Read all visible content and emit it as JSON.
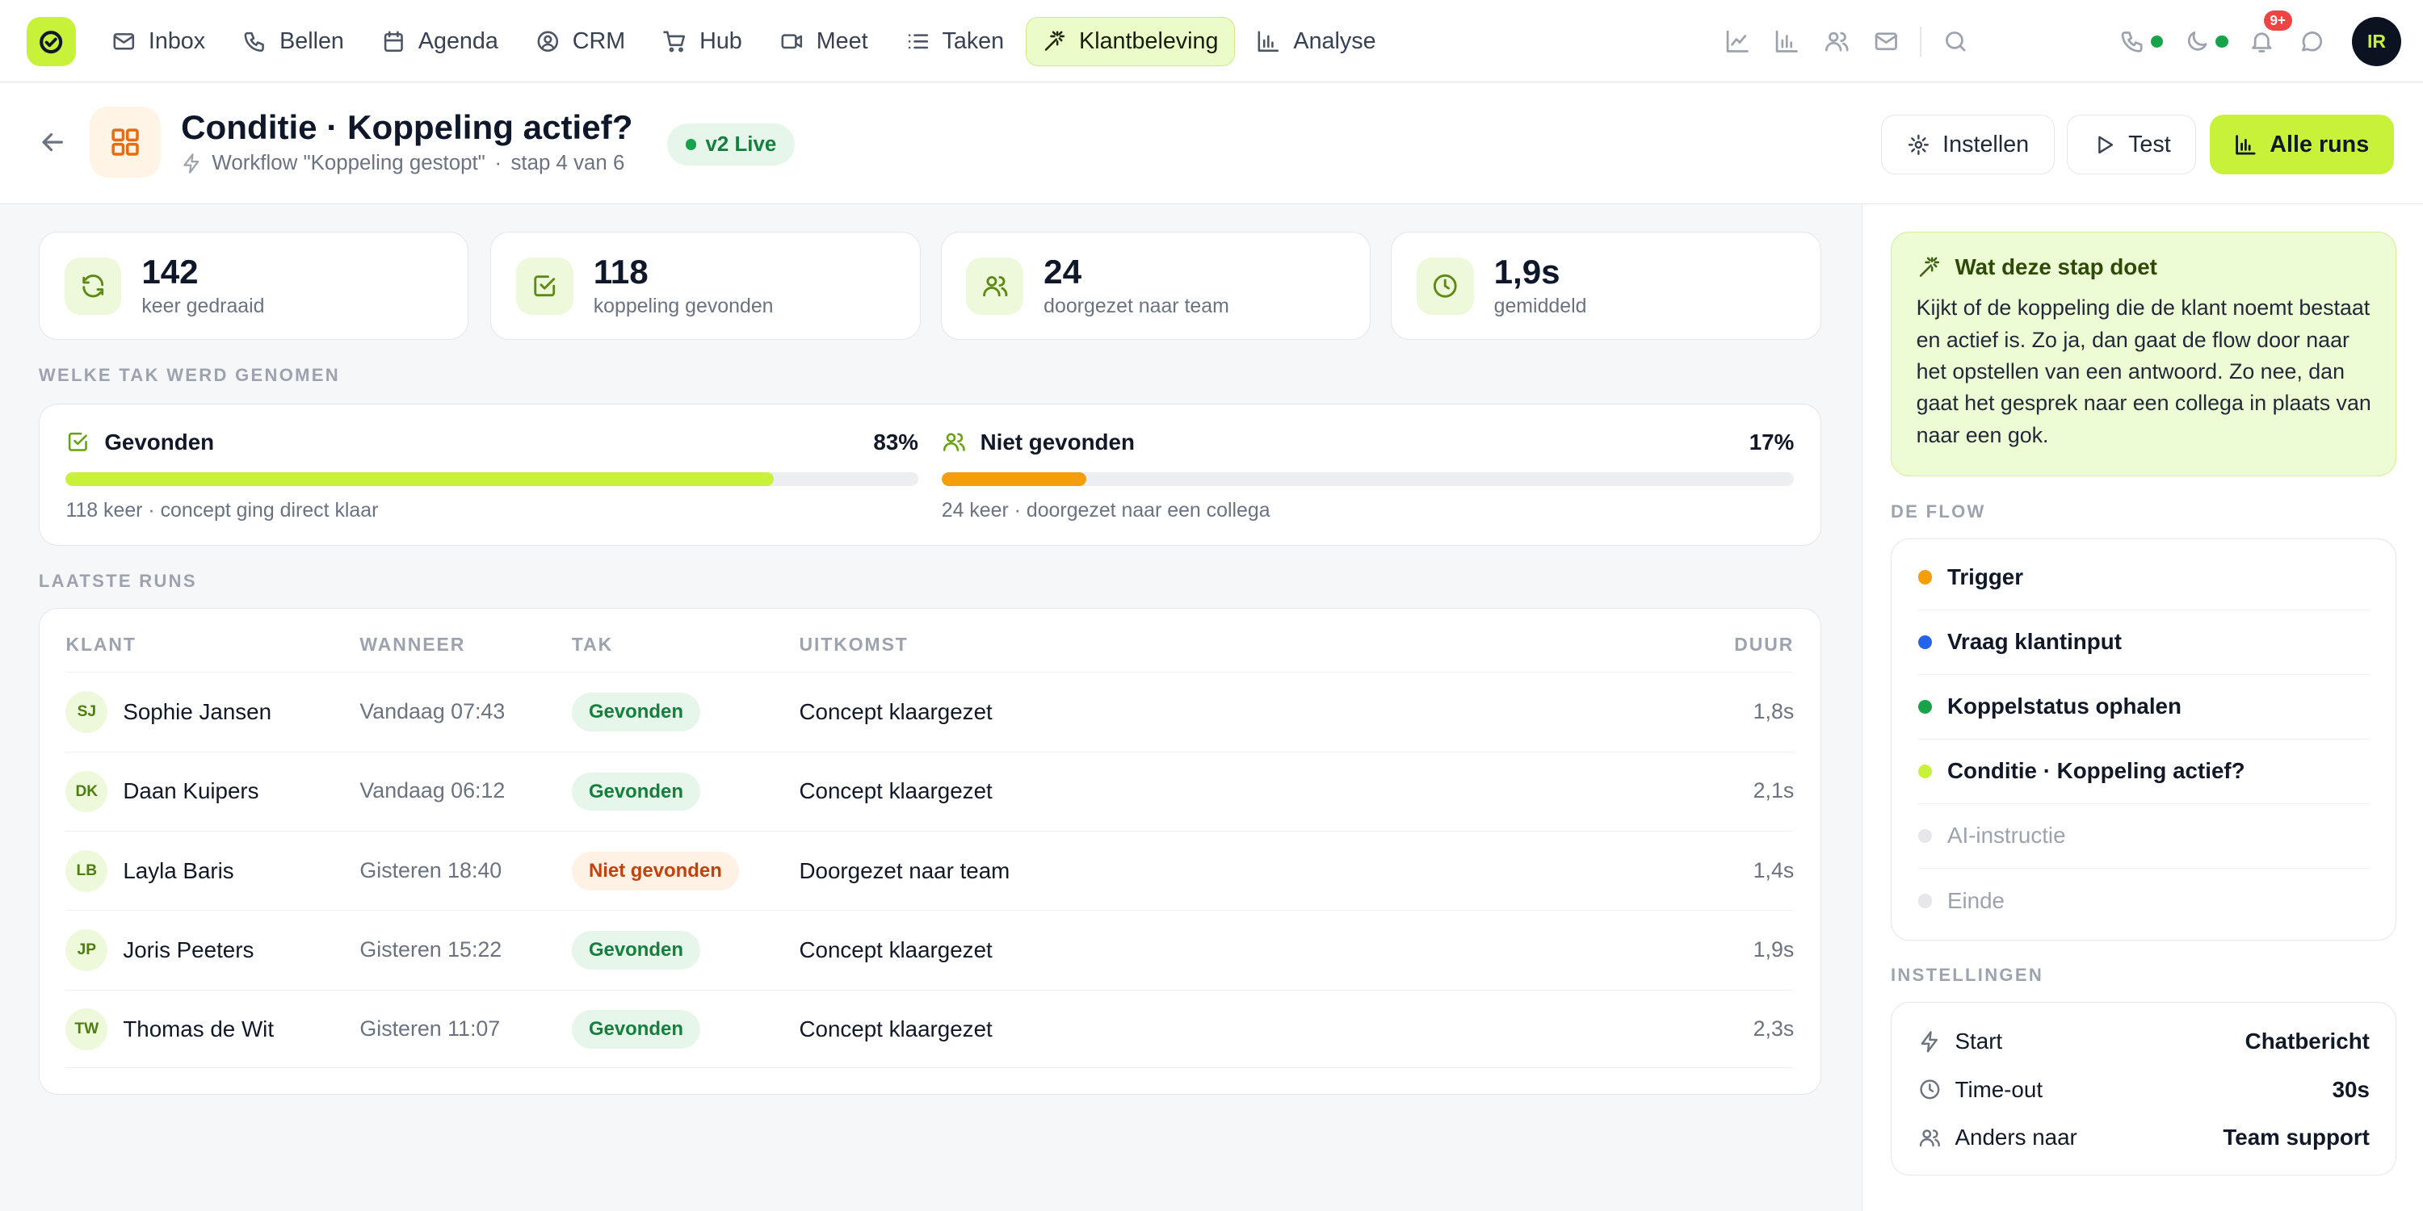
{
  "nav": {
    "items": [
      {
        "label": "Inbox",
        "icon": "mail-icon"
      },
      {
        "label": "Bellen",
        "icon": "phone-icon"
      },
      {
        "label": "Agenda",
        "icon": "calendar-icon"
      },
      {
        "label": "CRM",
        "icon": "contact-icon"
      },
      {
        "label": "Hub",
        "icon": "cart-icon"
      },
      {
        "label": "Meet",
        "icon": "video-icon"
      },
      {
        "label": "Taken",
        "icon": "list-icon"
      },
      {
        "label": "Klantbeleving",
        "icon": "sparkle-icon",
        "active": true
      },
      {
        "label": "Analyse",
        "icon": "bar-chart-icon"
      }
    ],
    "notification_count": "9+",
    "avatar_initials": "IR"
  },
  "header": {
    "title": "Conditie · Koppeling actief?",
    "subtitle_workflow": "Workflow \"Koppeling gestopt\"",
    "subtitle_sep": "·",
    "subtitle_step": "stap 4 van 6",
    "badge": "v2 Live",
    "btn_settings": "Instellen",
    "btn_test": "Test",
    "btn_runs": "Alle runs"
  },
  "stats": [
    {
      "value": "142",
      "label": "keer gedraaid",
      "icon": "refresh-icon"
    },
    {
      "value": "118",
      "label": "koppeling gevonden",
      "icon": "check-square-icon"
    },
    {
      "value": "24",
      "label": "doorgezet naar team",
      "icon": "users-icon"
    },
    {
      "value": "1,9s",
      "label": "gemiddeld",
      "icon": "clock-icon"
    }
  ],
  "branches": {
    "section_label": "WELKE TAK WERD GENOMEN",
    "found": {
      "label": "Gevonden",
      "percent_label": "83%",
      "percent": 83,
      "detail": "118 keer · concept ging direct klaar",
      "color": "#c8f23a"
    },
    "not_found": {
      "label": "Niet gevonden",
      "percent_label": "17%",
      "percent": 17,
      "detail": "24 keer · doorgezet naar een collega",
      "color": "#f59e0b"
    }
  },
  "runs": {
    "section_label": "LAATSTE RUNS",
    "columns": {
      "klant": "KLANT",
      "wanneer": "WANNEER",
      "tak": "TAK",
      "uitkomst": "UITKOMST",
      "duur": "DUUR"
    },
    "rows": [
      {
        "initials": "SJ",
        "name": "Sophie Jansen",
        "when": "Vandaag 07:43",
        "branch": "Gevonden",
        "branch_type": "ok",
        "outcome": "Concept klaargezet",
        "duration": "1,8s"
      },
      {
        "initials": "DK",
        "name": "Daan Kuipers",
        "when": "Vandaag 06:12",
        "branch": "Gevonden",
        "branch_type": "ok",
        "outcome": "Concept klaargezet",
        "duration": "2,1s"
      },
      {
        "initials": "LB",
        "name": "Layla Baris",
        "when": "Gisteren 18:40",
        "branch": "Niet gevonden",
        "branch_type": "no",
        "outcome": "Doorgezet naar team",
        "duration": "1,4s"
      },
      {
        "initials": "JP",
        "name": "Joris Peeters",
        "when": "Gisteren 15:22",
        "branch": "Gevonden",
        "branch_type": "ok",
        "outcome": "Concept klaargezet",
        "duration": "1,9s"
      },
      {
        "initials": "TW",
        "name": "Thomas de Wit",
        "when": "Gisteren 11:07",
        "branch": "Gevonden",
        "branch_type": "ok",
        "outcome": "Concept klaargezet",
        "duration": "2,3s"
      }
    ]
  },
  "info": {
    "title": "Wat deze stap doet",
    "text": "Kijkt of de koppeling die de klant noemt bestaat en actief is. Zo ja, dan gaat de flow door naar het opstellen van een antwoord. Zo nee, dan gaat het gesprek naar een collega in plaats van naar een gok."
  },
  "flow": {
    "section_label": "DE FLOW",
    "steps": [
      {
        "label": "Trigger",
        "color": "#f59e0b"
      },
      {
        "label": "Vraag klantinput",
        "color": "#2563eb"
      },
      {
        "label": "Koppelstatus ophalen",
        "color": "#16a34a"
      },
      {
        "label": "Conditie · Koppeling actief?",
        "color": "#c8f23a"
      },
      {
        "label": "AI-instructie",
        "color": "#e5e7eb"
      },
      {
        "label": "Einde",
        "color": "#e5e7eb"
      }
    ]
  },
  "settings": {
    "section_label": "INSTELLINGEN",
    "rows": [
      {
        "label": "Start",
        "value": "Chatbericht",
        "icon": "bolt-icon"
      },
      {
        "label": "Time-out",
        "value": "30s",
        "icon": "clock-icon"
      },
      {
        "label": "Anders naar",
        "value": "Team support",
        "icon": "users-icon"
      }
    ]
  }
}
